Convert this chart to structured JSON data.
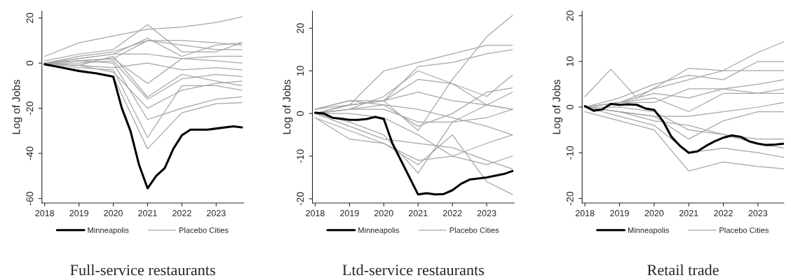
{
  "chart_data": [
    {
      "type": "line",
      "title": "Full-service restaurants",
      "ylabel": "Log of Jobs",
      "xlim": [
        2017.92,
        2023.8
      ],
      "xticks": [
        2018,
        2019,
        2020,
        2021,
        2022,
        2023
      ],
      "ylim": [
        -62,
        23
      ],
      "yticks": [
        -60,
        -40,
        -20,
        0,
        20
      ],
      "legend": "bottom",
      "grid": false,
      "series": [
        {
          "name": "Minneapolis",
          "color": "#000000",
          "x": [
            2018,
            2018.5,
            2019,
            2019.5,
            2020,
            2020.25,
            2020.5,
            2020.75,
            2021,
            2021.25,
            2021.5,
            2021.75,
            2022,
            2022.25,
            2022.75,
            2023,
            2023.5,
            2023.75
          ],
          "values": [
            -0.5,
            -2,
            -3.5,
            -4.5,
            -6,
            -20,
            -30,
            -45,
            -55.5,
            -50,
            -46.5,
            -38,
            -32,
            -29.5,
            -29.5,
            -29,
            -28,
            -28.5
          ]
        },
        {
          "name": "Placebo Cities",
          "color": "#a6a6a6",
          "x": [
            2018,
            2019,
            2020,
            2021,
            2022,
            2023,
            2023.75
          ],
          "values": [
            3,
            9,
            12,
            15,
            16,
            18,
            20.5
          ]
        },
        {
          "color": "#a6a6a6",
          "x": [
            2018,
            2019,
            2020,
            2021,
            2022,
            2023,
            2023.75
          ],
          "values": [
            1,
            4,
            6,
            17,
            5,
            5,
            9
          ]
        },
        {
          "color": "#a6a6a6",
          "x": [
            2018,
            2019,
            2020,
            2021,
            2022,
            2023,
            2023.75
          ],
          "values": [
            0,
            2,
            4,
            11,
            3,
            8,
            9
          ]
        },
        {
          "color": "#a6a6a6",
          "x": [
            2018,
            2019,
            2020,
            2021,
            2022,
            2023,
            2023.75
          ],
          "values": [
            0,
            3,
            5,
            10,
            10,
            9,
            8
          ]
        },
        {
          "color": "#a6a6a6",
          "x": [
            2018,
            2019,
            2020,
            2021,
            2022,
            2023,
            2023.75
          ],
          "values": [
            0,
            1,
            2,
            -9,
            2,
            3,
            3
          ]
        },
        {
          "color": "#a6a6a6",
          "x": [
            2018,
            2019,
            2020,
            2021,
            2022,
            2023,
            2023.75
          ],
          "values": [
            0,
            -1,
            3,
            -15,
            -5,
            -8,
            -10
          ]
        },
        {
          "color": "#a6a6a6",
          "x": [
            2018,
            2019,
            2020,
            2021,
            2022,
            2023,
            2023.75
          ],
          "values": [
            0,
            -2,
            -3,
            -33,
            -10,
            -10,
            -12
          ]
        },
        {
          "color": "#a6a6a6",
          "x": [
            2018,
            2019,
            2020,
            2021,
            2022,
            2023,
            2023.75
          ],
          "values": [
            -1,
            -3,
            -6,
            -38,
            -22,
            -18,
            -17.5
          ]
        },
        {
          "color": "#a6a6a6",
          "x": [
            2018,
            2019,
            2020,
            2021,
            2022,
            2023,
            2023.75
          ],
          "values": [
            0,
            1,
            0,
            -25,
            -20,
            -16,
            -15
          ]
        },
        {
          "color": "#a6a6a6",
          "x": [
            2018,
            2019,
            2020,
            2021,
            2022,
            2023,
            2023.75
          ],
          "values": [
            0,
            -1,
            -4,
            -20,
            -12,
            -9,
            -8
          ]
        },
        {
          "color": "#a6a6a6",
          "x": [
            2018,
            2019,
            2020,
            2021,
            2022,
            2023,
            2023.75
          ],
          "values": [
            0,
            2,
            4,
            4,
            2,
            1,
            0
          ]
        },
        {
          "color": "#a6a6a6",
          "x": [
            2018,
            2019,
            2020,
            2021,
            2022,
            2023,
            2023.75
          ],
          "values": [
            0,
            0,
            1,
            -16,
            -7,
            -5,
            -6
          ]
        },
        {
          "color": "#a6a6a6",
          "x": [
            2018,
            2019,
            2020,
            2021,
            2022,
            2023,
            2023.75
          ],
          "values": [
            0,
            1,
            2,
            10,
            8,
            6,
            6
          ]
        },
        {
          "color": "#a6a6a6",
          "x": [
            2018,
            2019,
            2020,
            2021,
            2022,
            2023,
            2023.75
          ],
          "values": [
            0,
            -1,
            -2,
            0,
            -3,
            -2,
            -3
          ]
        }
      ]
    },
    {
      "type": "line",
      "title": "Ltd-service restaurants",
      "ylabel": "Log of Jobs",
      "xlim": [
        2017.92,
        2023.8
      ],
      "xticks": [
        2018,
        2019,
        2020,
        2021,
        2022,
        2023
      ],
      "ylim": [
        -21,
        24
      ],
      "yticks": [
        -20,
        -10,
        0,
        10,
        20
      ],
      "legend": "bottom",
      "grid": false,
      "series": [
        {
          "name": "Minneapolis",
          "color": "#000000",
          "x": [
            2018,
            2018.25,
            2018.5,
            2018.75,
            2019,
            2019.25,
            2019.5,
            2019.75,
            2020,
            2020.25,
            2021,
            2021.25,
            2021.5,
            2021.75,
            2022,
            2022.25,
            2022.5,
            2023,
            2023.5,
            2023.75
          ],
          "values": [
            0.2,
            0,
            -1,
            -1.2,
            -1.5,
            -1.5,
            -1.3,
            -0.8,
            -1.3,
            -7,
            -19,
            -18.7,
            -19,
            -18.9,
            -18,
            -16.5,
            -15.5,
            -15,
            -14.2,
            -13.5
          ]
        },
        {
          "name": "Placebo Cities",
          "color": "#a6a6a6",
          "x": [
            2018,
            2019,
            2020,
            2021,
            2022,
            2023,
            2023.75
          ],
          "values": [
            1,
            3,
            3,
            -4,
            8,
            18,
            23
          ]
        },
        {
          "color": "#a6a6a6",
          "x": [
            2018,
            2019,
            2020,
            2021,
            2022,
            2023,
            2023.75
          ],
          "values": [
            1,
            2,
            10,
            12,
            14,
            16,
            16
          ]
        },
        {
          "color": "#a6a6a6",
          "x": [
            2018,
            2019,
            2020,
            2021,
            2022,
            2023,
            2023.75
          ],
          "values": [
            0,
            2,
            3,
            11,
            12,
            14,
            15
          ]
        },
        {
          "color": "#a6a6a6",
          "x": [
            2018,
            2019,
            2020,
            2021,
            2022,
            2023,
            2023.75
          ],
          "values": [
            0,
            1,
            4,
            10,
            7,
            4,
            9
          ]
        },
        {
          "color": "#a6a6a6",
          "x": [
            2018,
            2019,
            2020,
            2021,
            2022,
            2023,
            2023.75
          ],
          "values": [
            0,
            -2,
            -5,
            -14,
            -2,
            2,
            5
          ]
        },
        {
          "color": "#a6a6a6",
          "x": [
            2018,
            2019,
            2020,
            2021,
            2022,
            2023,
            2023.75
          ],
          "values": [
            -1,
            -4,
            -7,
            -11,
            -10,
            -7,
            -5
          ]
        },
        {
          "color": "#a6a6a6",
          "x": [
            2018,
            2019,
            2020,
            2021,
            2022,
            2023,
            2023.75
          ],
          "values": [
            0,
            -3,
            -6,
            -7,
            -8,
            -11,
            -13
          ]
        },
        {
          "color": "#a6a6a6",
          "x": [
            2018,
            2019,
            2020,
            2021,
            2022,
            2023,
            2023.75
          ],
          "values": [
            0,
            1,
            1,
            -2,
            -2,
            -1,
            1
          ]
        },
        {
          "color": "#a6a6a6",
          "x": [
            2018,
            2019,
            2020,
            2021,
            2022,
            2023,
            2023.75
          ],
          "values": [
            0,
            2,
            3,
            5,
            3,
            2,
            1
          ]
        },
        {
          "color": "#a6a6a6",
          "x": [
            2018,
            2019,
            2020,
            2021,
            2022,
            2023,
            2023.75
          ],
          "values": [
            -1,
            -6,
            -7,
            -12,
            -5,
            -16,
            -19
          ]
        },
        {
          "color": "#a6a6a6",
          "x": [
            2018,
            2019,
            2020,
            2021,
            2022,
            2023,
            2023.75
          ],
          "values": [
            1,
            3,
            2,
            -3,
            0,
            5,
            6
          ]
        },
        {
          "color": "#a6a6a6",
          "x": [
            2018,
            2019,
            2020,
            2021,
            2022,
            2023,
            2023.75
          ],
          "values": [
            0,
            0,
            -1,
            -5,
            -10,
            -12,
            -10
          ]
        },
        {
          "color": "#a6a6a6",
          "x": [
            2018,
            2019,
            2020,
            2021,
            2022,
            2023,
            2023.75
          ],
          "values": [
            0,
            1,
            2,
            1,
            -1,
            -3,
            -5
          ]
        },
        {
          "color": "#a6a6a6",
          "x": [
            2018,
            2019,
            2020,
            2021,
            2022,
            2023,
            2023.75
          ],
          "values": [
            0,
            2,
            3,
            8,
            7,
            2,
            1
          ]
        }
      ]
    },
    {
      "type": "line",
      "title": "Retail trade",
      "ylabel": "Log of Jobs",
      "xlim": [
        2017.92,
        2023.75
      ],
      "xticks": [
        2018,
        2019,
        2020,
        2021,
        2022,
        2023
      ],
      "ylim": [
        -21,
        21
      ],
      "yticks": [
        -20,
        -10,
        0,
        10,
        20
      ],
      "legend": "bottom",
      "grid": false,
      "series": [
        {
          "name": "Minneapolis",
          "color": "#000000",
          "x": [
            2018,
            2018.25,
            2018.5,
            2018.75,
            2019,
            2019.25,
            2019.5,
            2019.75,
            2020,
            2020.25,
            2020.5,
            2020.75,
            2021,
            2021.25,
            2021.5,
            2021.75,
            2022,
            2022.25,
            2022.5,
            2022.75,
            2023,
            2023.25,
            2023.5,
            2023.75
          ],
          "values": [
            0.2,
            -0.8,
            -0.5,
            0.7,
            0.5,
            0.6,
            0.5,
            -0.3,
            -0.6,
            -3,
            -6.5,
            -8.5,
            -10,
            -9.7,
            -8.5,
            -7.5,
            -6.7,
            -6.2,
            -6.5,
            -7.5,
            -8,
            -8.3,
            -8.2,
            -8
          ]
        },
        {
          "name": "Placebo Cities",
          "color": "#a6a6a6",
          "x": [
            2018,
            2018.75,
            2019.5,
            2021,
            2022,
            2023,
            2023.75
          ],
          "values": [
            2.3,
            8.3,
            2,
            8.5,
            8,
            12,
            14.3
          ]
        },
        {
          "color": "#a6a6a6",
          "x": [
            2018,
            2019,
            2020,
            2021,
            2022,
            2023,
            2023.75
          ],
          "values": [
            0,
            2,
            5,
            7,
            6,
            10,
            10
          ]
        },
        {
          "color": "#a6a6a6",
          "x": [
            2018,
            2019,
            2020,
            2021,
            2022,
            2023,
            2023.75
          ],
          "values": [
            0,
            1,
            4,
            6,
            8,
            8,
            8
          ]
        },
        {
          "color": "#a6a6a6",
          "x": [
            2018,
            2019,
            2020,
            2021,
            2022,
            2023,
            2023.75
          ],
          "values": [
            0,
            1,
            3,
            2,
            4,
            5,
            6
          ]
        },
        {
          "color": "#a6a6a6",
          "x": [
            2018,
            2019,
            2020,
            2021,
            2022,
            2023,
            2023.75
          ],
          "values": [
            -1,
            -3,
            -5,
            -14,
            -12,
            -13,
            -13.5
          ]
        },
        {
          "color": "#a6a6a6",
          "x": [
            2018,
            2019,
            2020,
            2021,
            2022,
            2023,
            2023.75
          ],
          "values": [
            0,
            -2,
            -4,
            -10,
            -9,
            -10,
            -11
          ]
        },
        {
          "color": "#a6a6a6",
          "x": [
            2018,
            2019,
            2020,
            2021,
            2022,
            2023,
            2023.75
          ],
          "values": [
            0,
            1,
            2,
            -1,
            3,
            3,
            4
          ]
        },
        {
          "color": "#a6a6a6",
          "x": [
            2018,
            2019,
            2020,
            2021,
            2022,
            2023,
            2023.75
          ],
          "values": [
            0,
            -1,
            -2,
            -2,
            -1,
            0,
            1
          ]
        },
        {
          "color": "#a6a6a6",
          "x": [
            2018,
            2019,
            2020,
            2021,
            2022,
            2023,
            2023.75
          ],
          "values": [
            0,
            0,
            -1,
            -5,
            -6,
            -7,
            -7
          ]
        },
        {
          "color": "#a6a6a6",
          "x": [
            2018,
            2019,
            2020,
            2021,
            2022,
            2023,
            2023.75
          ],
          "values": [
            0,
            1,
            1,
            4,
            4,
            3,
            3
          ]
        },
        {
          "color": "#a6a6a6",
          "x": [
            2018,
            2019,
            2020,
            2021,
            2022,
            2023,
            2023.75
          ],
          "values": [
            0,
            -1,
            -2,
            -7,
            -3,
            -1,
            -1
          ]
        },
        {
          "color": "#a6a6a6",
          "x": [
            2018,
            2019,
            2020,
            2021,
            2022,
            2023,
            2023.75
          ],
          "values": [
            0,
            -1,
            -3,
            -4,
            -6,
            -8,
            -9
          ]
        }
      ]
    }
  ]
}
